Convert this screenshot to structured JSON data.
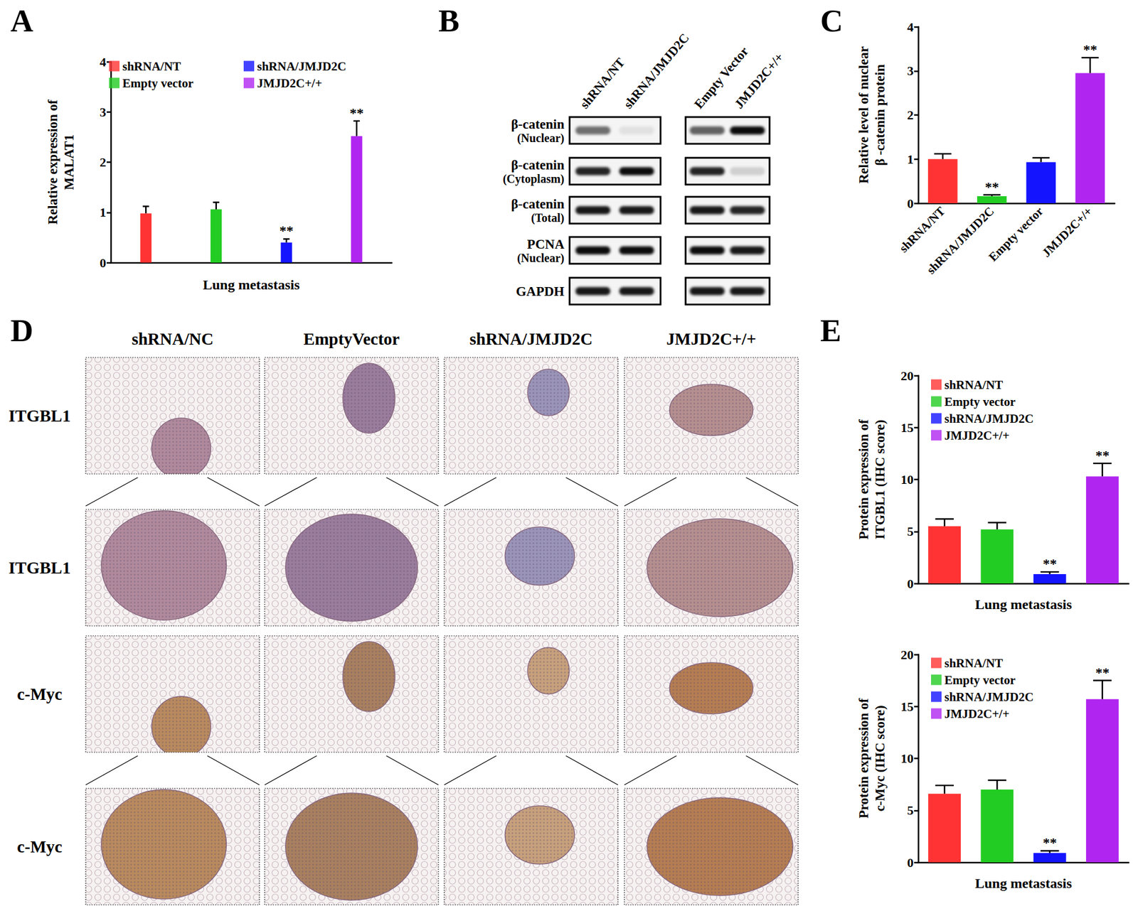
{
  "panel_labels": [
    "A",
    "B",
    "C",
    "D",
    "E"
  ],
  "chart_data": [
    {
      "type": "bar",
      "xlabel": "Lung metastasis",
      "ylabel": "Relative expression of\nMALAT1",
      "categories": [
        "shRNA/NT",
        "Empty vector",
        "shRNA/JMJD2C",
        "JMJD2C+/+"
      ],
      "values": [
        0.98,
        1.06,
        0.4,
        2.52
      ],
      "errors": [
        0.14,
        0.14,
        0.07,
        0.3
      ],
      "annotations": [
        null,
        null,
        "**",
        "**"
      ],
      "colors": [
        "#ff3333",
        "#22cc22",
        "#1414ff",
        "#b026f0"
      ],
      "ylim": [
        0,
        4
      ],
      "yticks": [
        0,
        1,
        2,
        3,
        4
      ],
      "legend": "upper left",
      "tick_labels": "y"
    },
    {
      "type": "bar",
      "ylabel": "Relative level of nuclear\nβ -catenin protein",
      "categories": [
        "shRNA/NT",
        "shRNA/JMJD2C",
        "Empty vector",
        "JMJD2C+/+"
      ],
      "values": [
        1.0,
        0.16,
        0.93,
        2.95
      ],
      "errors": [
        0.12,
        0.03,
        0.1,
        0.35
      ],
      "annotations": [
        null,
        "**",
        null,
        "**"
      ],
      "colors": [
        "#ff3333",
        "#22cc22",
        "#1414ff",
        "#b026f0"
      ],
      "ylim": [
        0,
        4
      ],
      "yticks": [
        0,
        1,
        2,
        3,
        4
      ]
    },
    {
      "type": "bar",
      "xlabel": "Lung metastasis",
      "ylabel": "Protein expression of\nITGBL1 (IHC score)",
      "categories": [
        "shRNA/NT",
        "Empty vector",
        "shRNA/JMJD2C",
        "JMJD2C+/+"
      ],
      "values": [
        5.5,
        5.2,
        0.9,
        10.3
      ],
      "errors": [
        0.7,
        0.65,
        0.2,
        1.25
      ],
      "annotations": [
        null,
        null,
        "**",
        "**"
      ],
      "colors": [
        "#ff3333",
        "#22cc22",
        "#1414ff",
        "#b026f0"
      ],
      "ylim": [
        0,
        20
      ],
      "yticks": [
        0,
        5,
        10,
        15,
        20
      ],
      "legend": "upper left",
      "tick_labels": "y"
    },
    {
      "type": "bar",
      "xlabel": "Lung metastasis",
      "ylabel": "Protein expression of\nc-Myc (IHC score)",
      "categories": [
        "shRNA/NT",
        "Empty vector",
        "shRNA/JMJD2C",
        "JMJD2C+/+"
      ],
      "values": [
        6.6,
        7.0,
        0.9,
        15.7
      ],
      "errors": [
        0.8,
        0.9,
        0.2,
        1.8
      ],
      "annotations": [
        null,
        null,
        "**",
        "**"
      ],
      "colors": [
        "#ff3333",
        "#22cc22",
        "#1414ff",
        "#b026f0"
      ],
      "ylim": [
        0,
        20
      ],
      "yticks": [
        0,
        5,
        10,
        15,
        20
      ],
      "legend": "upper left",
      "tick_labels": "y"
    }
  ],
  "blot": {
    "columns": [
      [
        "shRNA/NT",
        "shRNA/JMJD2C"
      ],
      [
        "Empty Vector",
        "JMJD2C+/+"
      ]
    ],
    "rows": [
      {
        "label": [
          "β-catenin",
          "(Nuclear)"
        ],
        "intensity": [
          [
            0.55,
            0.08
          ],
          [
            0.6,
            0.95
          ]
        ]
      },
      {
        "label": [
          "β-catenin",
          "(Cytoplasm)"
        ],
        "intensity": [
          [
            0.85,
            0.95
          ],
          [
            0.85,
            0.15
          ]
        ]
      },
      {
        "label": [
          "β-catenin",
          "(Total)"
        ],
        "intensity": [
          [
            0.9,
            0.9
          ],
          [
            0.9,
            0.85
          ]
        ]
      },
      {
        "label": [
          "PCNA",
          "(Nuclear)"
        ],
        "intensity": [
          [
            0.95,
            0.95
          ],
          [
            0.95,
            0.9
          ]
        ]
      },
      {
        "label": [
          "GAPDH"
        ],
        "intensity": [
          [
            0.9,
            0.9
          ],
          [
            0.9,
            0.9
          ]
        ]
      }
    ]
  },
  "ihc": {
    "columns": [
      "shRNA/NC",
      "EmptyVector",
      "shRNA/JMJD2C",
      "JMJD2C+/+"
    ],
    "rows": [
      "ITGBL1",
      "ITGBL1",
      "c-Myc",
      "c-Myc"
    ]
  }
}
